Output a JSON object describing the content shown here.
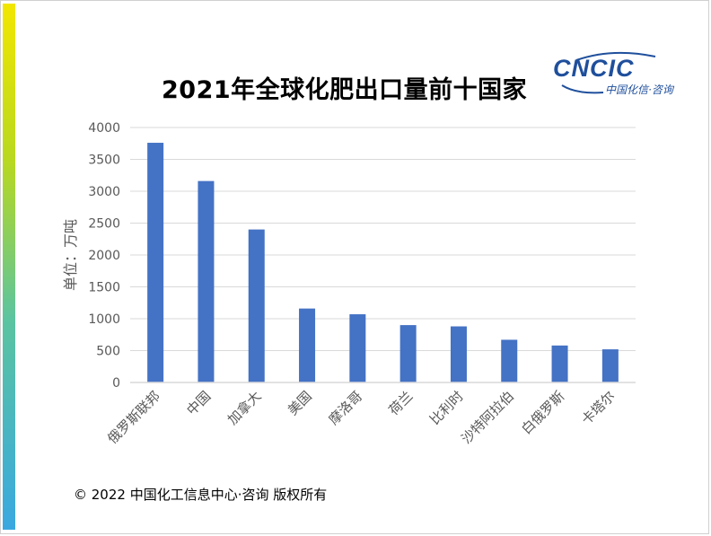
{
  "header": {
    "logo_text": "CNCIC",
    "logo_subtitle": "中国化信·咨询"
  },
  "footer": {
    "copyright": "© 2022 中国化工信息中心·咨询 版权所有"
  },
  "colors": {
    "bar": "#4472c4",
    "grid": "#d9d9d9",
    "axis_text": "#595959",
    "logo": "#1f4f9c"
  },
  "chart_data": {
    "type": "bar",
    "title": "2021年全球化肥出口量前十国家",
    "xlabel": "",
    "ylabel": "单位：万吨",
    "ylim": [
      0,
      4000
    ],
    "yticks": [
      0,
      500,
      1000,
      1500,
      2000,
      2500,
      3000,
      3500,
      4000
    ],
    "grid": true,
    "categories": [
      "俄罗斯联邦",
      "中国",
      "加拿大",
      "美国",
      "摩洛哥",
      "荷兰",
      "比利时",
      "沙特阿拉伯",
      "白俄罗斯",
      "卡塔尔"
    ],
    "values": [
      3760,
      3160,
      2400,
      1160,
      1070,
      900,
      880,
      670,
      580,
      520
    ]
  }
}
